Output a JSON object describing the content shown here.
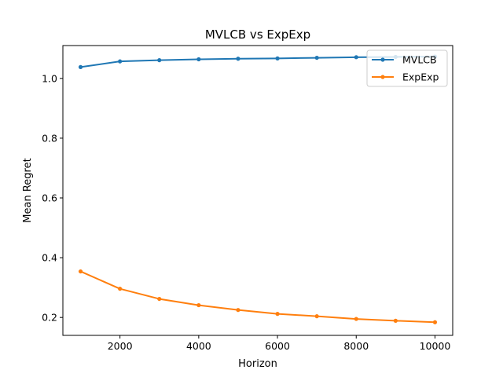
{
  "chart_data": {
    "type": "line",
    "title": "MVLCB vs ExpExp",
    "xlabel": "Horizon",
    "ylabel": "Mean Regret",
    "x": [
      1000,
      2000,
      3000,
      4000,
      5000,
      6000,
      7000,
      8000,
      9000,
      10000
    ],
    "xlim": [
      550,
      10450
    ],
    "ylim": [
      0.14,
      1.11
    ],
    "xticks": [
      2000,
      4000,
      6000,
      8000,
      10000
    ],
    "yticks": [
      0.2,
      0.4,
      0.6,
      0.8,
      1.0
    ],
    "xtick_labels": [
      "2000",
      "4000",
      "6000",
      "8000",
      "10000"
    ],
    "ytick_labels": [
      "0.2",
      "0.4",
      "0.6",
      "0.8",
      "1.0"
    ],
    "grid": false,
    "legend_position": "top-right",
    "series": [
      {
        "name": "MVLCB",
        "color": "#1f77b4",
        "marker": "dot",
        "values": [
          1.038,
          1.057,
          1.061,
          1.064,
          1.066,
          1.067,
          1.069,
          1.071,
          1.072,
          1.073
        ]
      },
      {
        "name": "ExpExp",
        "color": "#ff7f0e",
        "marker": "dot",
        "values": [
          0.354,
          0.296,
          0.262,
          0.241,
          0.225,
          0.212,
          0.204,
          0.195,
          0.189,
          0.184
        ]
      }
    ]
  }
}
